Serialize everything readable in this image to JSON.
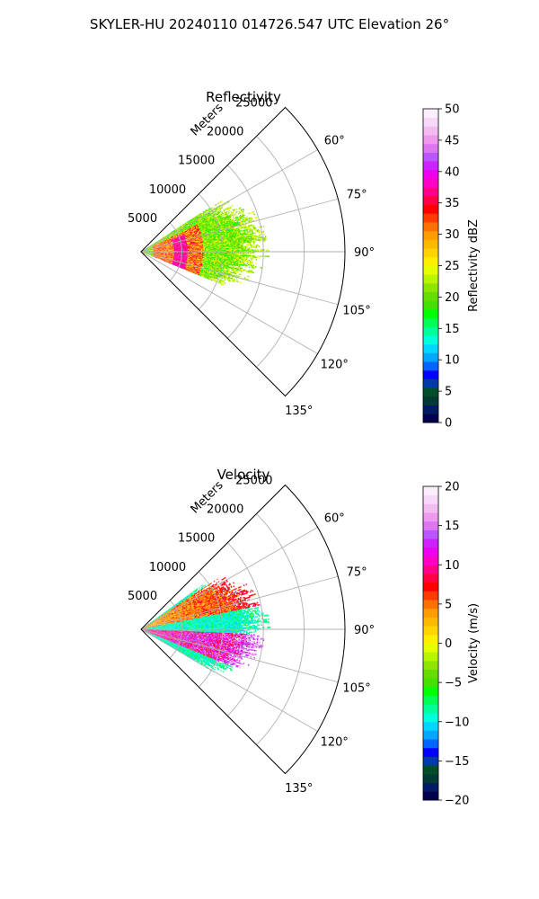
{
  "figure": {
    "title": "SKYLER-HU  20240110  014726.547 UTC Elevation 26°"
  },
  "chart_data": [
    {
      "type": "heatmap",
      "projection": "polar-sector",
      "title": "Reflectivity",
      "range_axis_label": "Meters",
      "range_ticks": [
        5000,
        10000,
        15000,
        20000,
        25000
      ],
      "range_tick_labels": [
        "5000",
        "10000",
        "15000",
        "20000",
        "25000"
      ],
      "rmax": 25000,
      "azimuth_range_deg": [
        45,
        135
      ],
      "azimuth_ticks": [
        60,
        75,
        90,
        105,
        120,
        135
      ],
      "azimuth_tick_labels": [
        "60°",
        "75°",
        "90°",
        "105°",
        "120°",
        "135°"
      ],
      "grid": true,
      "data_extent": {
        "azimuth_deg": [
          57,
          112
        ],
        "max_range_m": [
          11500,
          16000
        ],
        "core_range_m": [
          1500,
          7500
        ],
        "core_value_dbz": 36,
        "outer_value_dbz": 20
      },
      "colorbar": {
        "label": "Reflectivity dBZ",
        "min": 0,
        "max": 50,
        "ticks": [
          0,
          5,
          10,
          15,
          20,
          25,
          30,
          35,
          40,
          45,
          50
        ],
        "tick_labels": [
          "0",
          "5",
          "10",
          "15",
          "20",
          "25",
          "30",
          "35",
          "40",
          "45",
          "50"
        ],
        "colors": [
          "#00004c",
          "#001a66",
          "#003a33",
          "#004d2a",
          "#003ba8",
          "#0000ff",
          "#0066ff",
          "#00a6ff",
          "#00d6ff",
          "#00ffdd",
          "#00ff99",
          "#00ff55",
          "#00ff00",
          "#44e000",
          "#66dd00",
          "#8ee600",
          "#b8f500",
          "#e6ff00",
          "#ffee00",
          "#ffd400",
          "#ffb800",
          "#ff9c00",
          "#ff7000",
          "#ff3c00",
          "#ff0000",
          "#ff0044",
          "#ff0088",
          "#ff00c8",
          "#ee00ee",
          "#cc22ff",
          "#bb55ff",
          "#dd77f0",
          "#ee99ee",
          "#f2bbf2",
          "#f8d8f8",
          "#fceefc"
        ]
      }
    },
    {
      "type": "heatmap",
      "projection": "polar-sector",
      "title": "Velocity",
      "range_axis_label": "Meters",
      "range_ticks": [
        5000,
        10000,
        15000,
        20000,
        25000
      ],
      "range_tick_labels": [
        "5000",
        "10000",
        "15000",
        "20000",
        "25000"
      ],
      "rmax": 25000,
      "azimuth_range_deg": [
        45,
        135
      ],
      "azimuth_ticks": [
        60,
        75,
        90,
        105,
        120,
        135
      ],
      "azimuth_tick_labels": [
        "60°",
        "75°",
        "90°",
        "105°",
        "120°",
        "135°"
      ],
      "grid": true,
      "data_extent": {
        "azimuth_deg": [
          54,
          120
        ],
        "max_range_m": [
          11000,
          16000
        ],
        "inbound_azimuth_deg": [
          92,
          112
        ],
        "inbound_value_ms": 12,
        "outbound_azimuth_deg": [
          56,
          78
        ],
        "outbound_value_ms": 2,
        "center_value_ms": -9
      },
      "colorbar": {
        "label": "Velocity (m/s)",
        "min": -20,
        "max": 20,
        "ticks": [
          -20,
          -15,
          -10,
          -5,
          0,
          5,
          10,
          15,
          20
        ],
        "tick_labels": [
          "−20",
          "−15",
          "−10",
          "−5",
          "0",
          "5",
          "10",
          "15",
          "20"
        ],
        "colors": [
          "#00004c",
          "#001a66",
          "#003a33",
          "#004d2a",
          "#003ba8",
          "#0000ff",
          "#0066ff",
          "#00a6ff",
          "#00d6ff",
          "#00ffdd",
          "#00ff99",
          "#00ff55",
          "#00ff00",
          "#44e000",
          "#66dd00",
          "#8ee600",
          "#b8f500",
          "#e6ff00",
          "#ffee00",
          "#ffd400",
          "#ffb800",
          "#ff9c00",
          "#ff7000",
          "#ff3c00",
          "#ff0000",
          "#ff0044",
          "#ff0088",
          "#ff00c8",
          "#ee00ee",
          "#cc22ff",
          "#bb55ff",
          "#dd77f0",
          "#ee99ee",
          "#f2bbf2",
          "#f8d8f8",
          "#fceefc"
        ]
      }
    }
  ]
}
